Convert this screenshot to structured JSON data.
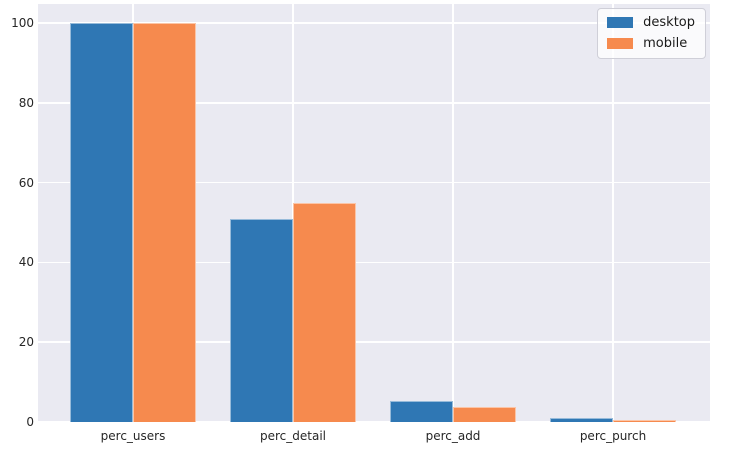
{
  "chart_data": {
    "type": "bar",
    "title": "",
    "xlabel": "",
    "ylabel": "",
    "categories": [
      "perc_users",
      "perc_detail",
      "perc_add",
      "perc_purch"
    ],
    "series": [
      {
        "name": "desktop",
        "color": "#2f77b4",
        "values": [
          100,
          51,
          5.3,
          1.0
        ]
      },
      {
        "name": "mobile",
        "color": "#f68a4e",
        "values": [
          100,
          54.8,
          3.8,
          0.5
        ]
      }
    ],
    "yticks": [
      0,
      20,
      40,
      60,
      80,
      100
    ],
    "ylim": [
      0,
      104.8
    ],
    "grid": true,
    "grid_axes": "both",
    "legend": {
      "position": "upper-right",
      "entries": [
        "desktop",
        "mobile"
      ]
    },
    "colors": {
      "figure_bg": "#ffffff",
      "plot_bg": "#eaeaf2",
      "grid": "#ffffff",
      "tick_text": "#262626",
      "legend_border": "#cfcfd8"
    }
  }
}
